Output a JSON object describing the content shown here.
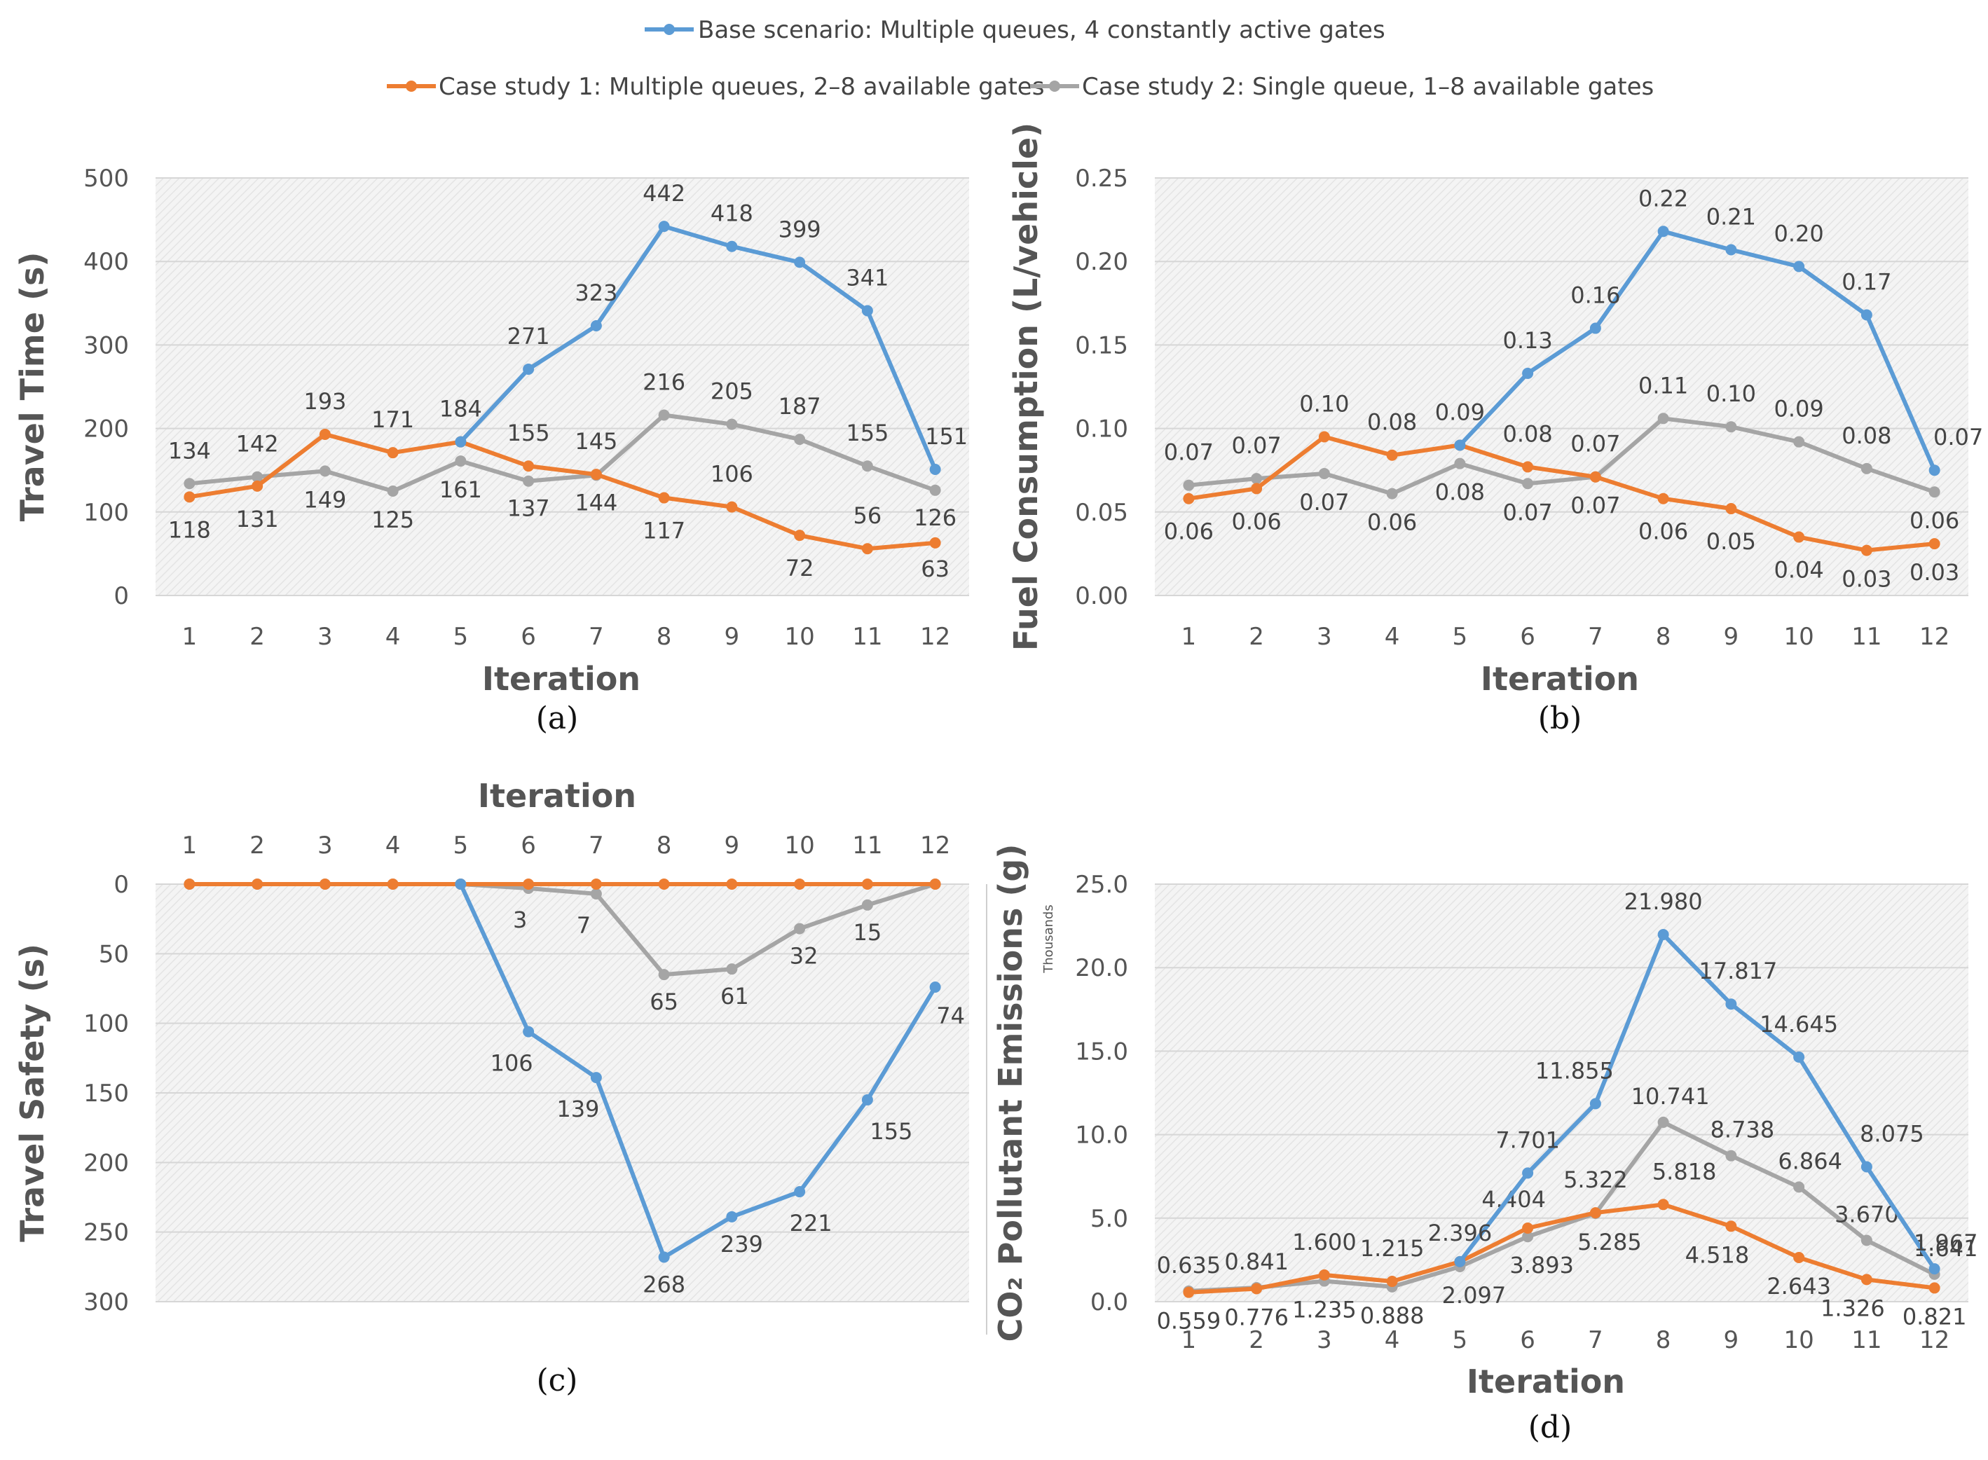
{
  "legend": [
    {
      "name": "Base scenario: Multiple queues, 4 constantly active gates",
      "color": "#5b9bd5"
    },
    {
      "name": "Case study 1: Multiple queues, 2–8 available gates",
      "color": "#ed7d31"
    },
    {
      "name": "Case study 2: Single queue, 1–8 available gates",
      "color": "#a5a5a5"
    }
  ],
  "chart_data": [
    {
      "panel": "(a)",
      "type": "line",
      "title": "",
      "xlabel": "Iteration",
      "ylabel": "Travel Time (s)",
      "categories": [
        "1",
        "2",
        "3",
        "4",
        "5",
        "6",
        "7",
        "8",
        "9",
        "10",
        "11",
        "12"
      ],
      "ylim": [
        0,
        500
      ],
      "yticks": [
        "0",
        "100",
        "200",
        "300",
        "400",
        "500"
      ],
      "reversed": false,
      "series": [
        {
          "name": "Base scenario: Multiple queues, 4 constantly active gates",
          "color": "#5b9bd5",
          "values": [
            null,
            null,
            null,
            null,
            184,
            271,
            323,
            442,
            418,
            399,
            341,
            151
          ],
          "labels": [
            null,
            null,
            null,
            null,
            "184",
            "271",
            "323",
            "442",
            "418",
            "399",
            "341",
            "151"
          ]
        },
        {
          "name": "Case study 1: Multiple queues, 2–8 available gates",
          "color": "#ed7d31",
          "values": [
            118,
            131,
            193,
            171,
            184,
            155,
            145,
            117,
            106,
            72,
            56,
            63
          ],
          "labels": [
            "118",
            "131",
            "193",
            "171",
            null,
            "155",
            "145",
            "117",
            "106",
            "72",
            "56",
            "63"
          ]
        },
        {
          "name": "Case study 2: Single queue, 1–8 available gates",
          "color": "#a5a5a5",
          "values": [
            134,
            142,
            149,
            125,
            161,
            137,
            144,
            216,
            205,
            187,
            155,
            126
          ],
          "labels": [
            "134",
            "142",
            "149",
            "125",
            "161",
            "137",
            "144",
            "216",
            "205",
            "187",
            "155",
            "126"
          ]
        }
      ]
    },
    {
      "panel": "(b)",
      "type": "line",
      "title": "",
      "xlabel": "Iteration",
      "ylabel": "Fuel Consumption (L/vehicle)",
      "categories": [
        "1",
        "2",
        "3",
        "4",
        "5",
        "6",
        "7",
        "8",
        "9",
        "10",
        "11",
        "12"
      ],
      "ylim": [
        0,
        0.25
      ],
      "yticks": [
        "0.00",
        "0.05",
        "0.10",
        "0.15",
        "0.20",
        "0.25"
      ],
      "reversed": false,
      "series": [
        {
          "name": "Base scenario: Multiple queues, 4 constantly active gates",
          "color": "#5b9bd5",
          "values": [
            null,
            null,
            null,
            null,
            0.09,
            0.133,
            0.16,
            0.218,
            0.207,
            0.197,
            0.168,
            0.075
          ],
          "labels": [
            null,
            null,
            null,
            null,
            "0.09",
            "0.13",
            "0.16",
            "0.22",
            "0.21",
            "0.20",
            "0.17",
            "0.07"
          ]
        },
        {
          "name": "Case study 1: Multiple queues, 2–8 available gates",
          "color": "#ed7d31",
          "values": [
            0.058,
            0.064,
            0.095,
            0.084,
            0.09,
            0.077,
            0.071,
            0.058,
            0.052,
            0.035,
            0.027,
            0.031
          ],
          "labels": [
            "0.06",
            "0.06",
            "0.10",
            "0.08",
            null,
            "0.08",
            "0.07",
            "0.06",
            "0.05",
            "0.04",
            "0.03",
            "0.03"
          ]
        },
        {
          "name": "Case study 2: Single queue, 1–8 available gates",
          "color": "#a5a5a5",
          "values": [
            0.066,
            0.07,
            0.073,
            0.061,
            0.079,
            0.067,
            0.071,
            0.106,
            0.101,
            0.092,
            0.076,
            0.062
          ],
          "labels": [
            "0.07",
            "0.07",
            "0.07",
            "0.06",
            "0.08",
            "0.07",
            "0.07",
            "0.11",
            "0.10",
            "0.09",
            "0.08",
            "0.06"
          ]
        }
      ]
    },
    {
      "panel": "(c)",
      "type": "line",
      "title": "",
      "xlabel": "Iteration",
      "ylabel": "Travel Safety (s)",
      "categories": [
        "1",
        "2",
        "3",
        "4",
        "5",
        "6",
        "7",
        "8",
        "9",
        "10",
        "11",
        "12"
      ],
      "ylim": [
        0,
        300
      ],
      "yticks": [
        "0",
        "50",
        "100",
        "150",
        "200",
        "250",
        "300"
      ],
      "reversed": true,
      "series": [
        {
          "name": "Base scenario: Multiple queues, 4 constantly active gates",
          "color": "#5b9bd5",
          "values": [
            null,
            null,
            null,
            null,
            0,
            106,
            139,
            268,
            239,
            221,
            155,
            74
          ],
          "labels": [
            null,
            null,
            null,
            null,
            null,
            "106",
            "139",
            "268",
            "239",
            "221",
            "155",
            "74"
          ]
        },
        {
          "name": "Case study 1: Multiple queues, 2–8 available gates",
          "color": "#ed7d31",
          "values": [
            0,
            0,
            0,
            0,
            0,
            0,
            0,
            0,
            0,
            0,
            0,
            0
          ],
          "labels": [
            null,
            null,
            null,
            null,
            null,
            null,
            null,
            null,
            null,
            null,
            null,
            null
          ]
        },
        {
          "name": "Case study 2: Single queue, 1–8 available gates",
          "color": "#a5a5a5",
          "values": [
            0,
            0,
            0,
            0,
            0,
            3,
            7,
            65,
            61,
            32,
            15,
            0
          ],
          "labels": [
            null,
            null,
            null,
            null,
            null,
            "3",
            "7",
            "65",
            "61",
            "32",
            "15",
            null
          ]
        }
      ]
    },
    {
      "panel": "(d)",
      "type": "line",
      "title": "",
      "xlabel": "Iteration",
      "ylabel": "CO₂ Pollutant Emissions (g)",
      "unit_note": "Thousands",
      "categories": [
        "1",
        "2",
        "3",
        "4",
        "5",
        "6",
        "7",
        "8",
        "9",
        "10",
        "11",
        "12"
      ],
      "ylim": [
        0,
        25
      ],
      "yticks": [
        "0.0",
        "5.0",
        "10.0",
        "15.0",
        "20.0",
        "25.0"
      ],
      "reversed": false,
      "series": [
        {
          "name": "Base scenario: Multiple queues, 4 constantly active gates",
          "color": "#5b9bd5",
          "values": [
            null,
            null,
            null,
            null,
            2.396,
            7.701,
            11.855,
            21.98,
            17.817,
            14.645,
            8.075,
            1.967
          ],
          "labels": [
            null,
            null,
            null,
            null,
            "2.396",
            "7.701",
            "11.855",
            "21.980",
            "17.817",
            "14.645",
            "8.075",
            "1.967"
          ]
        },
        {
          "name": "Case study 1: Multiple queues, 2–8 available gates",
          "color": "#ed7d31",
          "values": [
            0.559,
            0.776,
            1.6,
            1.215,
            2.396,
            4.404,
            5.322,
            5.818,
            4.518,
            2.643,
            1.326,
            0.821
          ],
          "labels": [
            "0.559",
            "0.776",
            "1.600",
            "1.215",
            null,
            "4.404",
            "5.322",
            "5.818",
            "4.518",
            "2.643",
            "1.326",
            "0.821"
          ]
        },
        {
          "name": "Case study 2: Single queue, 1–8 available gates",
          "color": "#a5a5a5",
          "values": [
            0.635,
            0.841,
            1.235,
            0.888,
            2.097,
            3.893,
            5.285,
            10.741,
            8.738,
            6.864,
            3.67,
            1.641
          ],
          "labels": [
            "0.635",
            "0.841",
            "1.235",
            "0.888",
            "2.097",
            "3.893",
            "5.285",
            "10.741",
            "8.738",
            "6.864",
            "3.670",
            "1.641"
          ]
        }
      ]
    }
  ]
}
